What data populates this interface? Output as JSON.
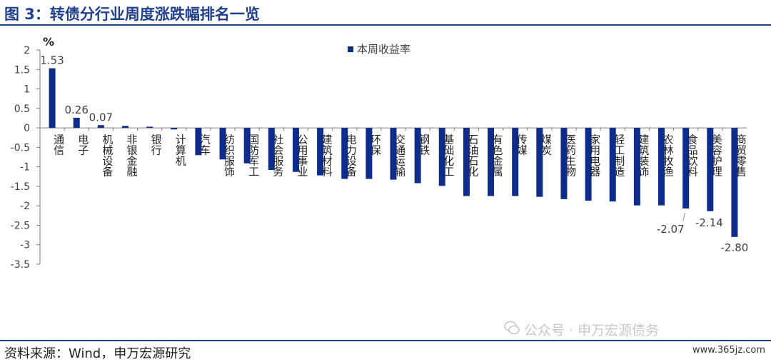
{
  "title": "图 3：转债分行业周度涨跌幅排名一览",
  "source": "资料来源：Wind，申万宏源研究",
  "watermark": "公众号 · 申万宏源债务",
  "site": "www.365jz.com",
  "colors": {
    "bar": "#0d2c8c",
    "title": "#1f3f8f",
    "axis": "#7f7f7f"
  },
  "chart_data": {
    "type": "bar",
    "ylabel": "%",
    "ylim": [
      -3.5,
      2
    ],
    "yticks": [
      2,
      1.5,
      1,
      0.5,
      0,
      -0.5,
      -1,
      -1.5,
      -2,
      -2.5,
      -3,
      -3.5
    ],
    "legend": {
      "label": "本周收益率",
      "position": "top-center"
    },
    "grid": false,
    "categories": [
      "通信",
      "电子",
      "机械设备",
      "非银金融",
      "银行",
      "计算机",
      "汽车",
      "纺织服饰",
      "国防军工",
      "社会服务",
      "公用事业",
      "建筑材料",
      "电力设备",
      "环保",
      "交通运输",
      "钢铁",
      "基础化工",
      "石油石化",
      "有色金属",
      "传媒",
      "煤炭",
      "医药生物",
      "家用电器",
      "轻工制造",
      "建筑装饰",
      "农林牧渔",
      "食品饮料",
      "美容护理",
      "商贸零售"
    ],
    "series": [
      {
        "name": "本周收益率",
        "values": [
          1.53,
          0.26,
          0.07,
          0.05,
          0.03,
          -0.04,
          -0.7,
          -0.81,
          -0.91,
          -1.08,
          -1.13,
          -1.22,
          -1.31,
          -1.31,
          -1.33,
          -1.42,
          -1.49,
          -1.75,
          -1.75,
          -1.75,
          -1.77,
          -1.83,
          -1.87,
          -1.89,
          -1.99,
          -1.99,
          -2.07,
          -2.14,
          -2.8
        ]
      }
    ],
    "data_labels": [
      {
        "index": 0,
        "text": "1.53"
      },
      {
        "index": 1,
        "text": "0.26"
      },
      {
        "index": 2,
        "text": "0.07"
      },
      {
        "index": 26,
        "text": "-2.07"
      },
      {
        "index": 27,
        "text": "-2.14"
      },
      {
        "index": 28,
        "text": "-2.80"
      }
    ]
  }
}
